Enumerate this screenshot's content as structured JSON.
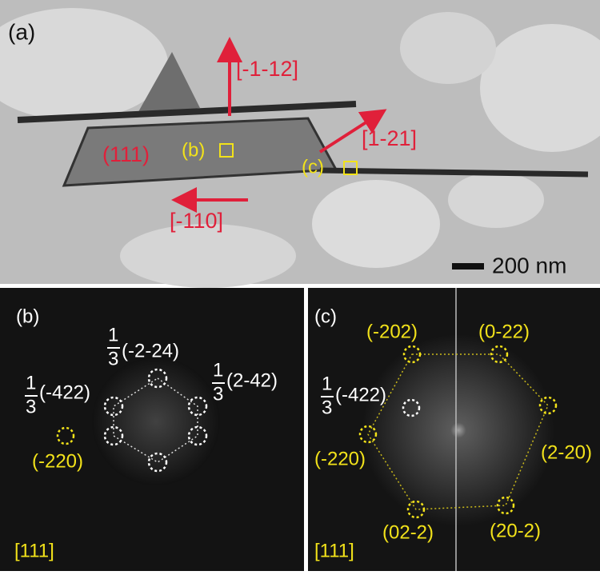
{
  "panel_a": {
    "tag": "(a)",
    "directions": [
      "[-1-12]",
      "[1-21]",
      "[-110]"
    ],
    "plane": "(111)",
    "marker_b": "(b)",
    "marker_c": "(c)",
    "scale_bar": "200 nm"
  },
  "panel_b": {
    "tag": "(b)",
    "zone_axis": "[111]",
    "labels": [
      {
        "numerator": "1",
        "denominator": "3",
        "text": "(-2-24)"
      },
      {
        "numerator": "1",
        "denominator": "3",
        "text": "(-422)"
      },
      {
        "numerator": "1",
        "denominator": "3",
        "text": "(2-42)"
      }
    ],
    "spot": "(-220)"
  },
  "panel_c": {
    "tag": "(c)",
    "zone_axis": "[111]",
    "spots": [
      "(-202)",
      "(0-22)",
      "(2-20)",
      "(20-2)",
      "(02-2)",
      "(-220)"
    ],
    "forbidden": {
      "numerator": "1",
      "denominator": "3",
      "text": "(-422)"
    }
  }
}
